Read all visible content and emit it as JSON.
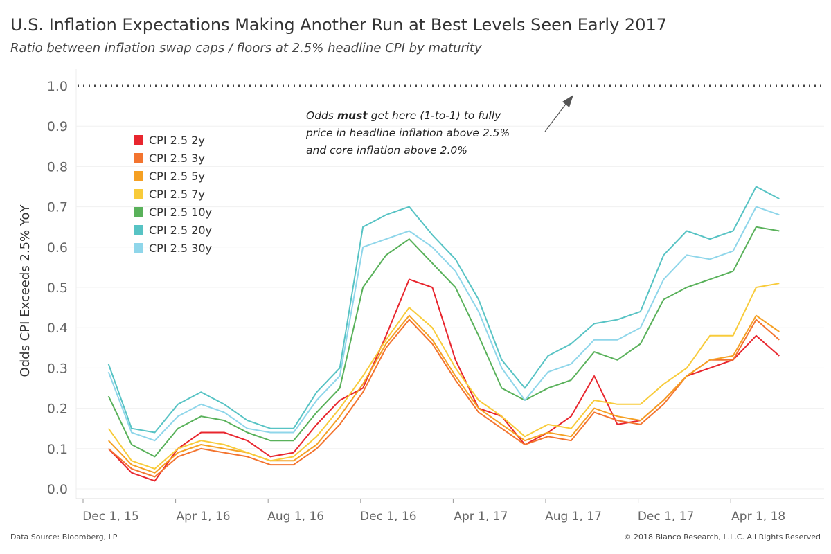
{
  "title": "U.S. Inflation Expectations Making Another Run at Best Levels Seen Early 2017",
  "subtitle": "Ratio between inflation swap caps / floors at 2.5% headline CPI by maturity",
  "footer": {
    "source": "Data Source: Bloomberg, LP",
    "copyright": "© 2018 Bianco Research, L.L.C. All Rights Reserved"
  },
  "chart_data": {
    "type": "line",
    "title": "U.S. Inflation Expectations Making Another Run at Best Levels Seen Early 2017",
    "ylabel": "Odds CPI Exceeds 2.5% YoY",
    "xlabel": "",
    "ylim": [
      0,
      1
    ],
    "yticks": [
      "0.0",
      "0.1",
      "0.2",
      "0.3",
      "0.4",
      "0.5",
      "0.6",
      "0.7",
      "0.8",
      "0.9",
      "1.0"
    ],
    "xticks": [
      {
        "label": "Dec 1, 15",
        "month": 0
      },
      {
        "label": "Apr 1, 16",
        "month": 4
      },
      {
        "label": "Aug 1, 16",
        "month": 8
      },
      {
        "label": "Dec 1, 16",
        "month": 12
      },
      {
        "label": "Apr 1, 17",
        "month": 16
      },
      {
        "label": "Aug 1, 17",
        "month": 20
      },
      {
        "label": "Dec 1, 17",
        "month": 24
      },
      {
        "label": "Apr 1, 18",
        "month": 28
      }
    ],
    "x_months_since_dec_2015": [
      1,
      2,
      3,
      4,
      5,
      6,
      7,
      8,
      9,
      10,
      11,
      12,
      13,
      14,
      15,
      16,
      17,
      18,
      19,
      20,
      21,
      22,
      23,
      24,
      25,
      26,
      27,
      28,
      29,
      30
    ],
    "reference_line": {
      "value": 1.0,
      "style": "dotted"
    },
    "annotation": {
      "lines": [
        "Odds must get here (1-to-1) to fully",
        "price in headline inflation above 2.5%",
        "and core inflation above 2.0%"
      ],
      "bold_word": "must"
    },
    "legend_position": "top-left",
    "series": [
      {
        "name": "CPI 2.5 2y",
        "color": "#e8262e",
        "values": [
          0.1,
          0.04,
          0.02,
          0.1,
          0.14,
          0.14,
          0.12,
          0.08,
          0.09,
          0.16,
          0.22,
          0.25,
          0.38,
          0.52,
          0.5,
          0.32,
          0.2,
          0.18,
          0.11,
          0.14,
          0.18,
          0.28,
          0.16,
          0.17,
          0.22,
          0.28,
          0.3,
          0.32,
          0.38,
          0.33
        ]
      },
      {
        "name": "CPI 2.5 3y",
        "color": "#f3742f",
        "values": [
          0.1,
          0.05,
          0.03,
          0.08,
          0.1,
          0.09,
          0.08,
          0.06,
          0.06,
          0.1,
          0.16,
          0.24,
          0.35,
          0.42,
          0.36,
          0.27,
          0.19,
          0.15,
          0.11,
          0.13,
          0.12,
          0.19,
          0.17,
          0.16,
          0.21,
          0.28,
          0.32,
          0.32,
          0.42,
          0.37
        ]
      },
      {
        "name": "CPI 2.5 5y",
        "color": "#f5a023",
        "values": [
          0.12,
          0.06,
          0.04,
          0.09,
          0.11,
          0.1,
          0.09,
          0.07,
          0.07,
          0.11,
          0.18,
          0.26,
          0.36,
          0.43,
          0.37,
          0.28,
          0.2,
          0.16,
          0.12,
          0.14,
          0.13,
          0.2,
          0.18,
          0.17,
          0.22,
          0.28,
          0.32,
          0.33,
          0.43,
          0.39
        ]
      },
      {
        "name": "CPI 2.5 7y",
        "color": "#f8cb3a",
        "values": [
          0.15,
          0.07,
          0.05,
          0.1,
          0.12,
          0.11,
          0.09,
          0.07,
          0.08,
          0.13,
          0.2,
          0.28,
          0.37,
          0.45,
          0.4,
          0.3,
          0.22,
          0.18,
          0.13,
          0.16,
          0.15,
          0.22,
          0.21,
          0.21,
          0.26,
          0.3,
          0.38,
          0.38,
          0.5,
          0.51
        ]
      },
      {
        "name": "CPI 2.5 10y",
        "color": "#59b15a",
        "values": [
          0.23,
          0.11,
          0.08,
          0.15,
          0.18,
          0.17,
          0.14,
          0.12,
          0.12,
          0.19,
          0.25,
          0.5,
          0.58,
          0.62,
          0.56,
          0.5,
          0.38,
          0.25,
          0.22,
          0.25,
          0.27,
          0.34,
          0.32,
          0.36,
          0.47,
          0.5,
          0.52,
          0.54,
          0.65,
          0.64
        ]
      },
      {
        "name": "CPI 2.5 20y",
        "color": "#57c3c4",
        "values": [
          0.31,
          0.15,
          0.14,
          0.21,
          0.24,
          0.21,
          0.17,
          0.15,
          0.15,
          0.24,
          0.3,
          0.65,
          0.68,
          0.7,
          0.63,
          0.57,
          0.47,
          0.32,
          0.25,
          0.33,
          0.36,
          0.41,
          0.42,
          0.44,
          0.58,
          0.64,
          0.62,
          0.64,
          0.75,
          0.72
        ]
      },
      {
        "name": "CPI 2.5 30y",
        "color": "#8fd6ea",
        "values": [
          0.29,
          0.14,
          0.12,
          0.18,
          0.21,
          0.19,
          0.15,
          0.14,
          0.14,
          0.22,
          0.28,
          0.6,
          0.62,
          0.64,
          0.6,
          0.54,
          0.44,
          0.3,
          0.22,
          0.29,
          0.31,
          0.37,
          0.37,
          0.4,
          0.52,
          0.58,
          0.57,
          0.59,
          0.7,
          0.68
        ]
      }
    ]
  }
}
